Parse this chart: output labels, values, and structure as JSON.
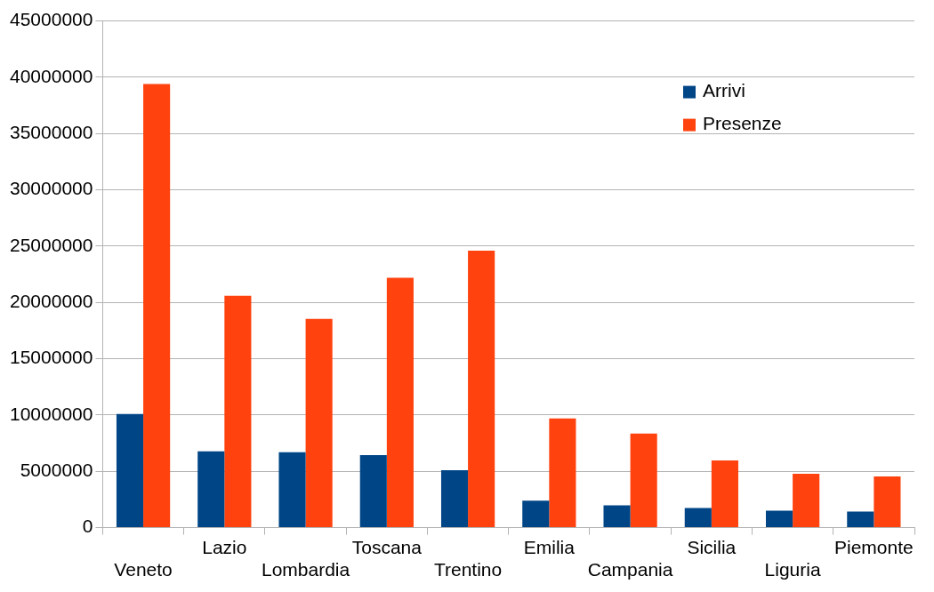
{
  "chart_data": {
    "type": "bar",
    "categories": [
      "Veneto",
      "Lazio",
      "Lombardia",
      "Toscana",
      "Trentino",
      "Emilia",
      "Campania",
      "Sicilia",
      "Liguria",
      "Piemonte"
    ],
    "series": [
      {
        "name": "Arrivi",
        "color": "#004586",
        "values": [
          10100000,
          6770000,
          6690000,
          6450000,
          5100000,
          2390000,
          1990000,
          1750000,
          1510000,
          1430000
        ]
      },
      {
        "name": "Presenze",
        "color": "#ff420e",
        "values": [
          39400000,
          20600000,
          18550000,
          22200000,
          24600000,
          9700000,
          8360000,
          5970000,
          4780000,
          4540000
        ]
      }
    ],
    "ylim": [
      0,
      45000000
    ],
    "yticks": [
      0,
      5000000,
      10000000,
      15000000,
      20000000,
      25000000,
      30000000,
      35000000,
      40000000,
      45000000
    ],
    "grid": "y",
    "legend": "top right"
  }
}
